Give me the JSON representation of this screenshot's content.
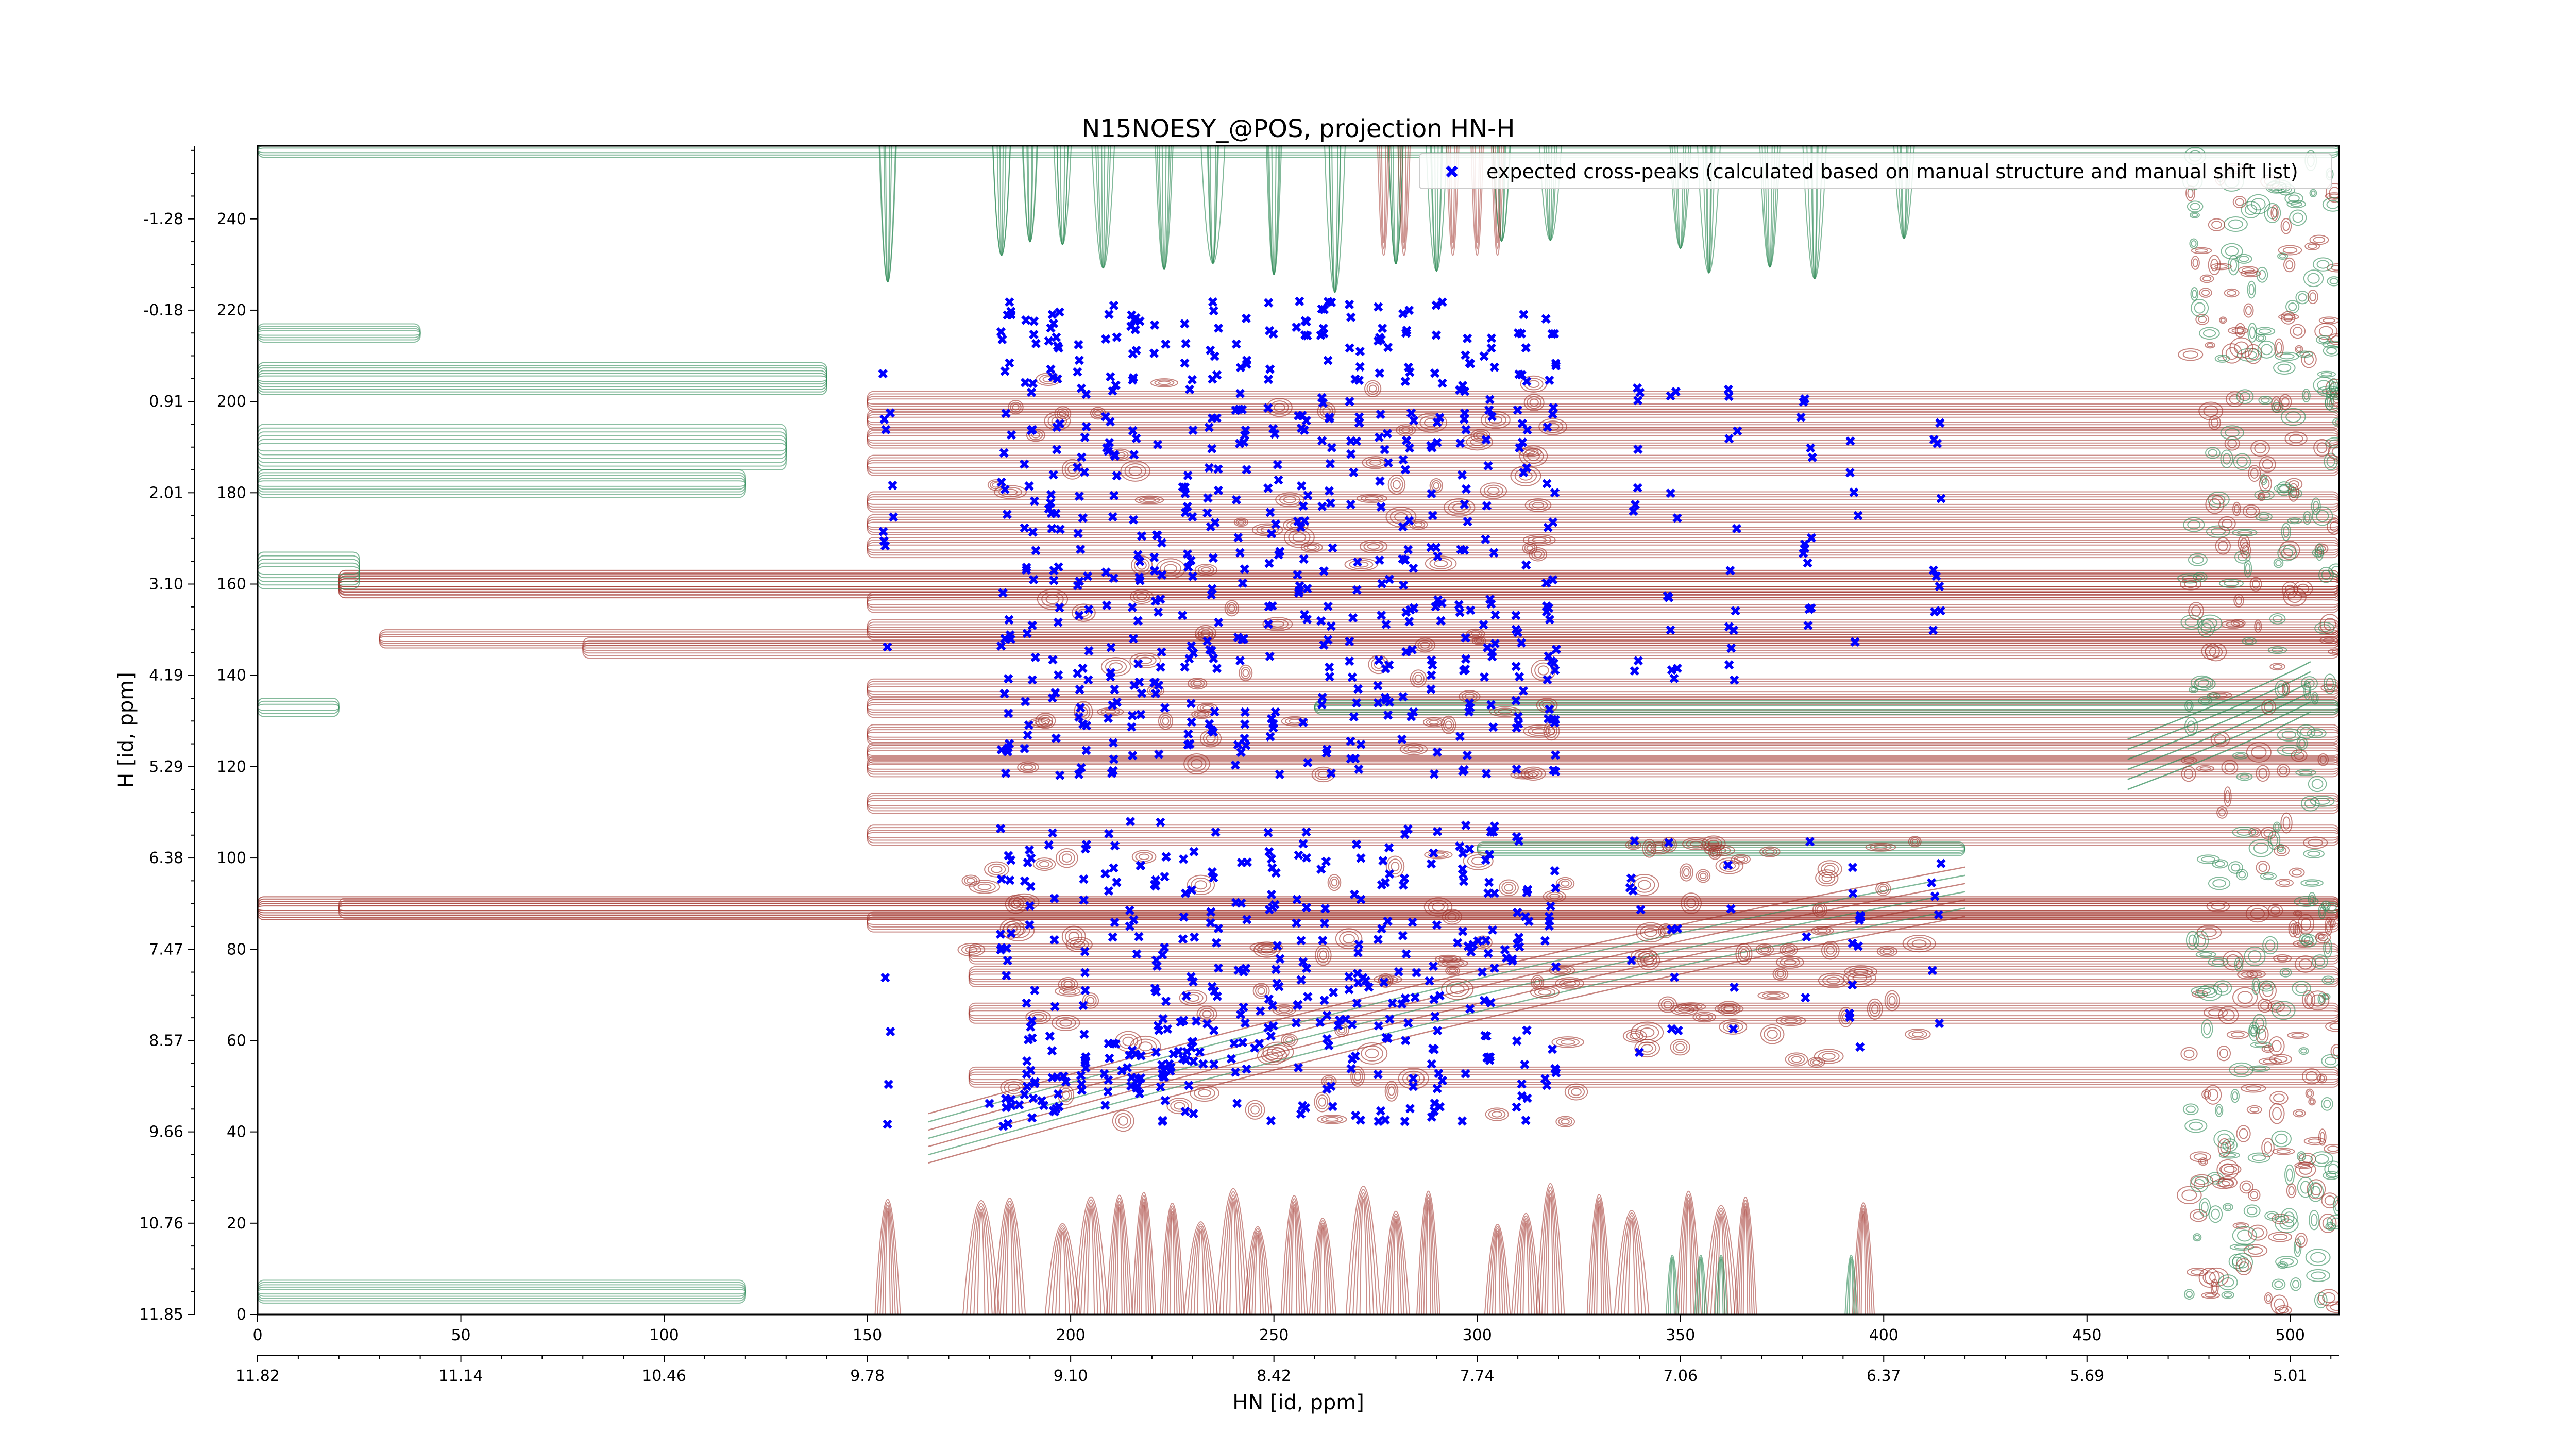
{
  "chart_data": {
    "type": "scatter",
    "title": "N15NOESY_@POS, projection HN-H",
    "xlabel": "HN [id, ppm]",
    "ylabel": "H [id, ppm]",
    "xlim": [
      0,
      512
    ],
    "ylim": [
      0,
      256
    ],
    "x_ticks": [
      0,
      50,
      100,
      150,
      200,
      250,
      300,
      350,
      400,
      450,
      500
    ],
    "y_ticks": [
      0,
      20,
      40,
      60,
      80,
      100,
      120,
      140,
      160,
      180,
      200,
      220,
      240
    ],
    "x_ppm_ticks": [
      {
        "pos": 0,
        "label": "11.82"
      },
      {
        "pos": 50,
        "label": "11.14"
      },
      {
        "pos": 100,
        "label": "10.46"
      },
      {
        "pos": 150,
        "label": "9.78"
      },
      {
        "pos": 200,
        "label": "9.10"
      },
      {
        "pos": 250,
        "label": "8.42"
      },
      {
        "pos": 300,
        "label": "7.74"
      },
      {
        "pos": 350,
        "label": "7.06"
      },
      {
        "pos": 400,
        "label": "6.37"
      },
      {
        "pos": 450,
        "label": "5.69"
      },
      {
        "pos": 500,
        "label": "5.01"
      }
    ],
    "y_ppm_ticks": [
      {
        "pos": 0,
        "label": "11.85"
      },
      {
        "pos": 20,
        "label": "10.76"
      },
      {
        "pos": 40,
        "label": "9.66"
      },
      {
        "pos": 60,
        "label": "8.57"
      },
      {
        "pos": 80,
        "label": "7.47"
      },
      {
        "pos": 100,
        "label": "6.38"
      },
      {
        "pos": 120,
        "label": "5.29"
      },
      {
        "pos": 140,
        "label": "4.19"
      },
      {
        "pos": 160,
        "label": "3.10"
      },
      {
        "pos": 180,
        "label": "2.01"
      },
      {
        "pos": 200,
        "label": "0.91"
      },
      {
        "pos": 220,
        "label": "-0.18"
      },
      {
        "pos": 240,
        "label": "-1.28"
      }
    ],
    "legend": {
      "placement": "top-right",
      "entries": [
        {
          "label": "expected cross-peaks (calculated based on manual structure and manual shift list)",
          "color": "#0000ff",
          "marker": "x"
        }
      ]
    },
    "colors": {
      "positive_contour": "#a0322a",
      "negative_contour": "#2e8b57",
      "peaks": "#0000ff"
    },
    "columns": [
      155,
      184,
      190,
      196,
      203,
      210,
      216,
      222,
      229,
      235,
      242,
      250,
      257,
      263,
      270,
      277,
      283,
      290,
      297,
      303,
      311,
      318,
      339,
      348,
      363,
      381,
      393,
      413
    ],
    "series": [
      {
        "name": "expected cross-peaks (calculated based on manual structure and manual shift list)",
        "points": []
      }
    ]
  }
}
